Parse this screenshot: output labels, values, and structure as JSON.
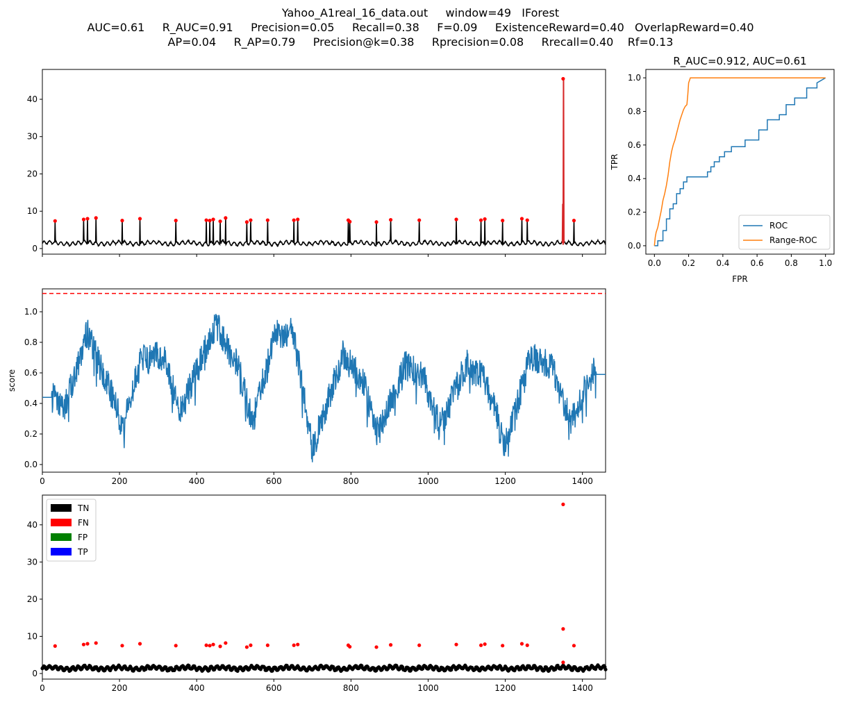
{
  "title": {
    "line1": "Yahoo_A1real_16_data.out     window=49   IForest",
    "line2": "AUC=0.61     R_AUC=0.91     Precision=0.05     Recall=0.38     F=0.09     ExistenceReward=0.40   OverlapReward=0.40",
    "line3": "AP=0.04     R_AP=0.79     Precision@k=0.38     Rprecision=0.08     Rrecall=0.40    Rf=0.13"
  },
  "colors": {
    "series": "#000000",
    "anomaly": "#ff0000",
    "anomaly_line": "#d62728",
    "score": "#1f77b4",
    "range_roc": "#ff7f0e",
    "threshold": "#ff0000",
    "fp": "#008000",
    "tp": "#0000ff"
  },
  "chart_data": [
    {
      "id": "timeseries",
      "type": "line",
      "xlim": [
        0,
        1460
      ],
      "ylim": [
        -1.5,
        48
      ],
      "yticks": [
        0,
        10,
        20,
        30,
        40
      ],
      "xticks_labeled": false,
      "baseline_level": 1.5,
      "anomaly_points": [
        {
          "x": 33,
          "y": 7.4
        },
        {
          "x": 107,
          "y": 7.8
        },
        {
          "x": 117,
          "y": 8.0
        },
        {
          "x": 139,
          "y": 8.2
        },
        {
          "x": 207,
          "y": 7.5
        },
        {
          "x": 253,
          "y": 8.0
        },
        {
          "x": 346,
          "y": 7.5
        },
        {
          "x": 425,
          "y": 7.6
        },
        {
          "x": 434,
          "y": 7.5
        },
        {
          "x": 443,
          "y": 7.8
        },
        {
          "x": 461,
          "y": 7.3
        },
        {
          "x": 475,
          "y": 8.2
        },
        {
          "x": 530,
          "y": 7.1
        },
        {
          "x": 540,
          "y": 7.6
        },
        {
          "x": 584,
          "y": 7.6
        },
        {
          "x": 652,
          "y": 7.6
        },
        {
          "x": 662,
          "y": 7.8
        },
        {
          "x": 793,
          "y": 7.6
        },
        {
          "x": 797,
          "y": 7.2
        },
        {
          "x": 866,
          "y": 7.1
        },
        {
          "x": 903,
          "y": 7.7
        },
        {
          "x": 977,
          "y": 7.6
        },
        {
          "x": 1073,
          "y": 7.8
        },
        {
          "x": 1137,
          "y": 7.6
        },
        {
          "x": 1147,
          "y": 7.9
        },
        {
          "x": 1193,
          "y": 7.5
        },
        {
          "x": 1243,
          "y": 8.0
        },
        {
          "x": 1257,
          "y": 7.6
        },
        {
          "x": 1350,
          "y": 45.5
        },
        {
          "x": 1378,
          "y": 7.5
        }
      ],
      "red_spike": {
        "x": 1350,
        "y": 45.5,
        "y_low": 12
      }
    },
    {
      "id": "roc",
      "type": "line",
      "title": "R_AUC=0.912, AUC=0.61",
      "xlabel": "FPR",
      "ylabel": "TPR",
      "xlim": [
        -0.05,
        1.05
      ],
      "ylim": [
        -0.05,
        1.05
      ],
      "xticks": [
        0.0,
        0.2,
        0.4,
        0.6,
        0.8,
        1.0
      ],
      "yticks": [
        0.0,
        0.2,
        0.4,
        0.6,
        0.8,
        1.0
      ],
      "legend": "lower-right",
      "series": [
        {
          "name": "ROC",
          "x": [
            0,
            0.02,
            0.02,
            0.05,
            0.05,
            0.07,
            0.07,
            0.09,
            0.09,
            0.11,
            0.11,
            0.13,
            0.13,
            0.15,
            0.15,
            0.17,
            0.17,
            0.19,
            0.19,
            0.25,
            0.25,
            0.31,
            0.31,
            0.33,
            0.33,
            0.35,
            0.35,
            0.38,
            0.38,
            0.41,
            0.41,
            0.45,
            0.45,
            0.53,
            0.53,
            0.61,
            0.61,
            0.66,
            0.66,
            0.73,
            0.73,
            0.77,
            0.77,
            0.82,
            0.82,
            0.89,
            0.89,
            0.95,
            0.95,
            1.0
          ],
          "y": [
            0,
            0,
            0.03,
            0.03,
            0.09,
            0.09,
            0.16,
            0.16,
            0.22,
            0.22,
            0.25,
            0.25,
            0.31,
            0.31,
            0.34,
            0.34,
            0.38,
            0.38,
            0.41,
            0.41,
            0.41,
            0.41,
            0.44,
            0.44,
            0.47,
            0.47,
            0.5,
            0.5,
            0.53,
            0.53,
            0.56,
            0.56,
            0.59,
            0.59,
            0.63,
            0.63,
            0.69,
            0.69,
            0.75,
            0.75,
            0.78,
            0.78,
            0.84,
            0.84,
            0.88,
            0.88,
            0.94,
            0.94,
            0.97,
            1.0
          ]
        },
        {
          "name": "Range-ROC",
          "x": [
            0,
            0.005,
            0.01,
            0.02,
            0.03,
            0.04,
            0.05,
            0.06,
            0.07,
            0.08,
            0.09,
            0.1,
            0.11,
            0.12,
            0.13,
            0.14,
            0.15,
            0.16,
            0.17,
            0.18,
            0.19,
            0.195,
            0.2,
            0.21,
            0.25,
            0.35,
            0.5,
            0.7,
            0.9,
            1.0
          ],
          "y": [
            0,
            0.05,
            0.08,
            0.11,
            0.16,
            0.21,
            0.27,
            0.31,
            0.36,
            0.42,
            0.5,
            0.56,
            0.6,
            0.63,
            0.67,
            0.71,
            0.75,
            0.78,
            0.81,
            0.83,
            0.84,
            0.9,
            0.97,
            1.0,
            1.0,
            1.0,
            1.0,
            1.0,
            1.0,
            1.0
          ]
        }
      ]
    },
    {
      "id": "score",
      "type": "line",
      "ylabel": "score",
      "xlim": [
        0,
        1460
      ],
      "ylim": [
        -0.05,
        1.15
      ],
      "xticks": [
        0,
        200,
        400,
        600,
        800,
        1000,
        1200,
        1400
      ],
      "yticks": [
        0.0,
        0.2,
        0.4,
        0.6,
        0.8,
        1.0
      ],
      "threshold": 1.12,
      "flat_start": {
        "x_end": 24,
        "y": 0.44
      },
      "flat_end": {
        "x_start": 1436,
        "y": 0.59
      },
      "envelope": [
        [
          24,
          0.44
        ],
        [
          60,
          0.38
        ],
        [
          115,
          0.87
        ],
        [
          165,
          0.55
        ],
        [
          210,
          0.25
        ],
        [
          255,
          0.68
        ],
        [
          315,
          0.72
        ],
        [
          355,
          0.33
        ],
        [
          450,
          0.92
        ],
        [
          510,
          0.62
        ],
        [
          545,
          0.27
        ],
        [
          600,
          0.84
        ],
        [
          650,
          0.88
        ],
        [
          700,
          0.1
        ],
        [
          780,
          0.72
        ],
        [
          830,
          0.55
        ],
        [
          870,
          0.2
        ],
        [
          940,
          0.65
        ],
        [
          990,
          0.57
        ],
        [
          1030,
          0.24
        ],
        [
          1100,
          0.66
        ],
        [
          1150,
          0.55
        ],
        [
          1200,
          0.12
        ],
        [
          1265,
          0.7
        ],
        [
          1320,
          0.65
        ],
        [
          1370,
          0.27
        ],
        [
          1420,
          0.57
        ],
        [
          1436,
          0.65
        ]
      ]
    },
    {
      "id": "classification",
      "type": "scatter",
      "xlim": [
        0,
        1460
      ],
      "ylim": [
        -1.5,
        48
      ],
      "xticks": [
        0,
        200,
        400,
        600,
        800,
        1000,
        1200,
        1400
      ],
      "yticks": [
        0,
        10,
        20,
        30,
        40
      ],
      "legend": "top-left",
      "legend_entries": [
        "TN",
        "FN",
        "FP",
        "TP"
      ],
      "fn_points": [
        {
          "x": 33,
          "y": 7.4
        },
        {
          "x": 107,
          "y": 7.8
        },
        {
          "x": 117,
          "y": 8.0
        },
        {
          "x": 139,
          "y": 8.2
        },
        {
          "x": 207,
          "y": 7.5
        },
        {
          "x": 253,
          "y": 8.0
        },
        {
          "x": 346,
          "y": 7.5
        },
        {
          "x": 425,
          "y": 7.6
        },
        {
          "x": 434,
          "y": 7.5
        },
        {
          "x": 443,
          "y": 7.8
        },
        {
          "x": 461,
          "y": 7.3
        },
        {
          "x": 475,
          "y": 8.2
        },
        {
          "x": 530,
          "y": 7.1
        },
        {
          "x": 540,
          "y": 7.6
        },
        {
          "x": 584,
          "y": 7.6
        },
        {
          "x": 652,
          "y": 7.6
        },
        {
          "x": 662,
          "y": 7.8
        },
        {
          "x": 793,
          "y": 7.6
        },
        {
          "x": 797,
          "y": 7.2
        },
        {
          "x": 866,
          "y": 7.1
        },
        {
          "x": 903,
          "y": 7.7
        },
        {
          "x": 977,
          "y": 7.6
        },
        {
          "x": 1073,
          "y": 7.8
        },
        {
          "x": 1137,
          "y": 7.6
        },
        {
          "x": 1147,
          "y": 7.9
        },
        {
          "x": 1193,
          "y": 7.5
        },
        {
          "x": 1243,
          "y": 8.0
        },
        {
          "x": 1257,
          "y": 7.6
        },
        {
          "x": 1350,
          "y": 45.5
        },
        {
          "x": 1350,
          "y": 12.0
        },
        {
          "x": 1350,
          "y": 3.0
        },
        {
          "x": 1378,
          "y": 7.5
        }
      ]
    }
  ]
}
